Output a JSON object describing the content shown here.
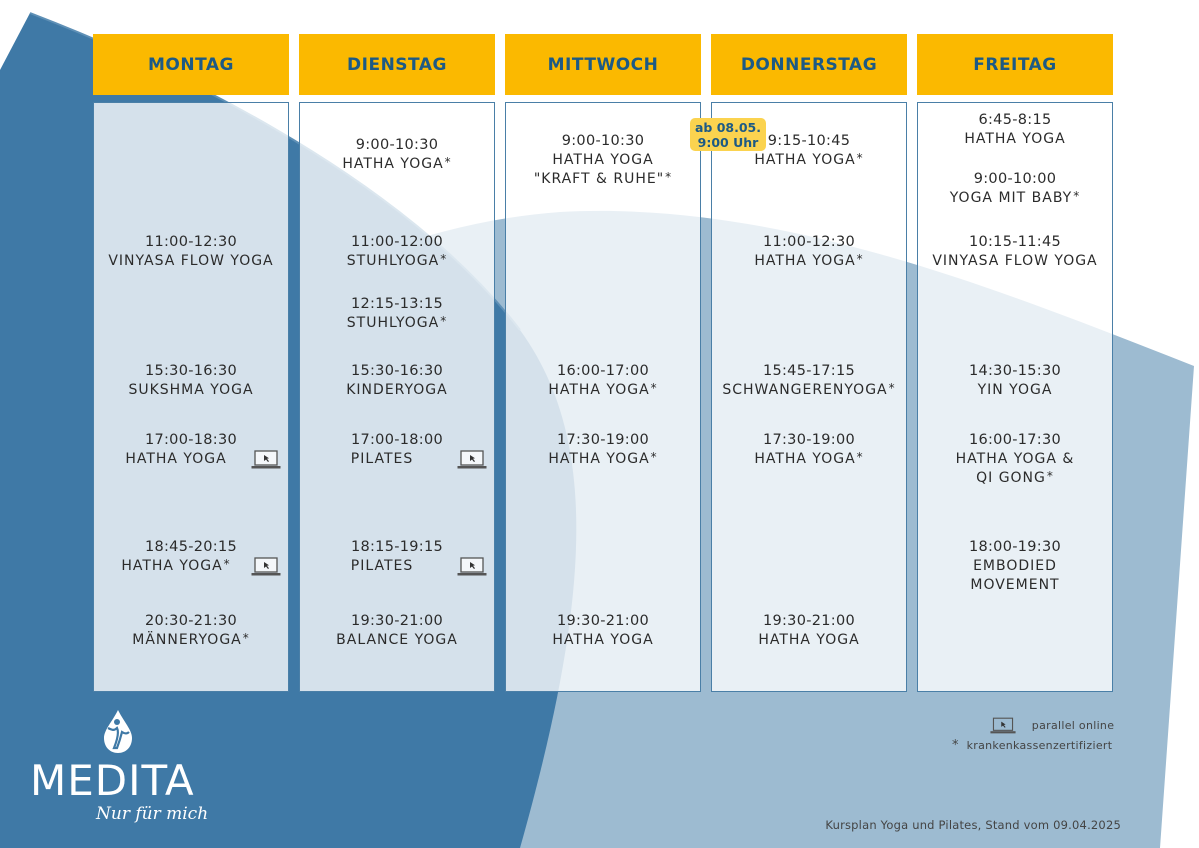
{
  "days": [
    {
      "name": "MONTAG",
      "classes": [
        {
          "time": "11:00-12:30",
          "name": "VINYASA FLOW YOGA",
          "star": false,
          "online": false
        },
        {
          "time": "15:30-16:30",
          "name": "SUKSHMA YOGA",
          "star": false,
          "online": false
        },
        {
          "time": "17:00-18:30",
          "name": "HATHA YOGA",
          "star": false,
          "online": true
        },
        {
          "time": "18:45-20:15",
          "name": "HATHA YOGA",
          "star": true,
          "online": true
        },
        {
          "time": "20:30-21:30",
          "name": "MÄNNERYOGA",
          "star": true,
          "online": false
        }
      ]
    },
    {
      "name": "DIENSTAG",
      "classes": [
        {
          "time": "9:00-10:30",
          "name": "HATHA YOGA",
          "star": true,
          "online": false
        },
        {
          "time": "11:00-12:00",
          "name": "STUHLYOGA",
          "star": true,
          "online": false
        },
        {
          "time": "12:15-13:15",
          "name": "STUHLYOGA",
          "star": true,
          "online": false
        },
        {
          "time": "15:30-16:30",
          "name": "KINDERYOGA",
          "star": false,
          "online": false
        },
        {
          "time": "17:00-18:00",
          "name": "PILATES",
          "star": false,
          "online": true
        },
        {
          "time": "18:15-19:15",
          "name": "PILATES",
          "star": false,
          "online": true
        },
        {
          "time": "19:30-21:00",
          "name": "BALANCE YOGA",
          "star": false,
          "online": false
        }
      ]
    },
    {
      "name": "MITTWOCH",
      "classes": [
        {
          "time": "9:00-10:30",
          "name": "HATHA YOGA",
          "name2": "\"KRAFT & RUHE\"",
          "star": true,
          "online": false
        },
        {
          "time": "16:00-17:00",
          "name": "HATHA YOGA",
          "star": true,
          "online": false
        },
        {
          "time": "17:30-19:00",
          "name": "HATHA YOGA",
          "star": true,
          "online": false
        },
        {
          "time": "19:30-21:00",
          "name": "HATHA YOGA",
          "star": false,
          "online": false
        }
      ]
    },
    {
      "name": "DONNERSTAG",
      "classes": [
        {
          "time": "9:15-10:45",
          "name": "HATHA YOGA",
          "star": true,
          "online": false
        },
        {
          "time": "11:00-12:30",
          "name": "HATHA YOGA",
          "star": true,
          "online": false
        },
        {
          "time": "15:45-17:15",
          "name": "SCHWANGERENYOGA",
          "star": true,
          "online": false
        },
        {
          "time": "17:30-19:00",
          "name": "HATHA YOGA",
          "star": true,
          "online": false
        },
        {
          "time": "19:30-21:00",
          "name": "HATHA YOGA",
          "star": false,
          "online": false
        }
      ]
    },
    {
      "name": "FREITAG",
      "classes": [
        {
          "time": "6:45-8:15",
          "name": "HATHA YOGA",
          "star": false,
          "online": false
        },
        {
          "time": "9:00-10:00",
          "name": "YOGA MIT BABY",
          "star": true,
          "online": false
        },
        {
          "time": "10:15-11:45",
          "name": "VINYASA FLOW YOGA",
          "star": false,
          "online": false
        },
        {
          "time": "14:30-15:30",
          "name": "YIN YOGA",
          "star": false,
          "online": false
        },
        {
          "time": "16:00-17:30",
          "name": "HATHA YOGA &",
          "name2": "QI GONG",
          "star": true,
          "online": false
        },
        {
          "time": "18:00-19:30",
          "name": "EMBODIED",
          "name2": "MOVEMENT",
          "star": false,
          "online": false
        }
      ]
    }
  ],
  "badge": {
    "line1": "ab 08.05.",
    "line2": "9:00 Uhr"
  },
  "legend": {
    "online": "parallel online",
    "star_symbol": "*",
    "certified": "krankenkassenzertifiziert"
  },
  "logo": {
    "brand": "MEDITA",
    "slogan": "Nur für mich"
  },
  "footer": "Kursplan Yoga und Pilates, Stand vom 09.04.2025",
  "colors": {
    "header": "#fbb900",
    "header_text": "#1d5a85",
    "badge": "#fbd34f",
    "dark_blue": "#3f79a6",
    "light_blue": "#9dbbd1"
  }
}
